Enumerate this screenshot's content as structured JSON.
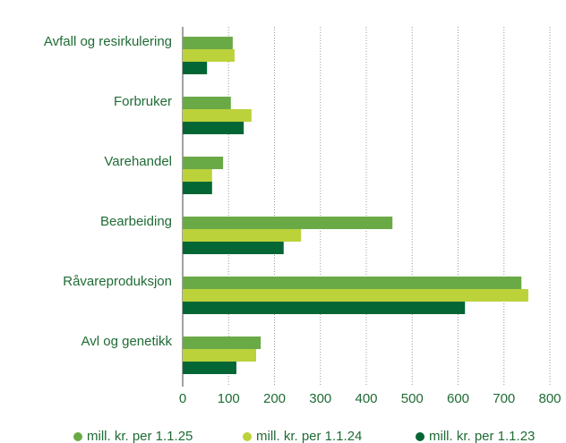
{
  "chart_data": {
    "type": "hbar",
    "categories": [
      "Avfall og resirkulering",
      "Forbruker",
      "Varehandel",
      "Bearbeiding",
      "Råvareproduksjon",
      "Avl og genetikk"
    ],
    "series": [
      {
        "name": "mill. kr. per 1.1.25",
        "color": "#6aaa46",
        "values": [
          109,
          105,
          88,
          457,
          738,
          170
        ]
      },
      {
        "name": "mill. kr. per 1.1.24",
        "color": "#bcd23a",
        "values": [
          113,
          150,
          64,
          258,
          753,
          160
        ]
      },
      {
        "name": "mill. kr. per 1.1.23",
        "color": "#036634",
        "values": [
          53,
          133,
          64,
          220,
          615,
          117
        ]
      }
    ],
    "xlim": [
      0,
      800
    ],
    "xticks": [
      0,
      100,
      200,
      300,
      400,
      500,
      600,
      700,
      800
    ],
    "grid": true,
    "legend": "bottom"
  }
}
